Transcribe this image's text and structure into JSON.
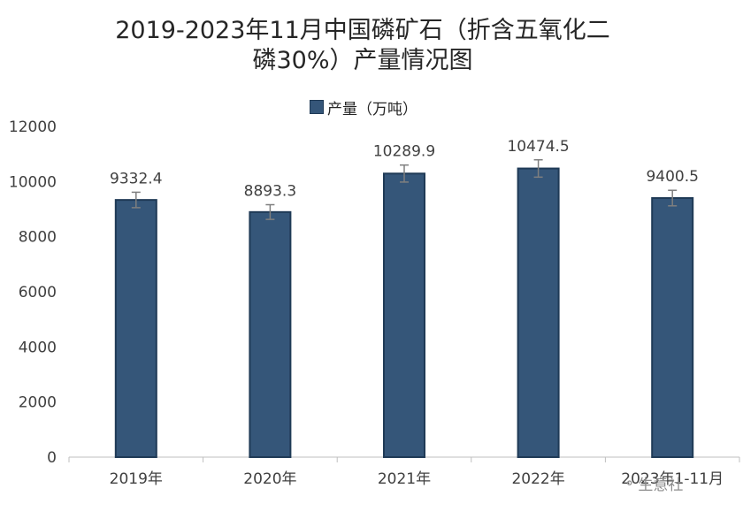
{
  "chart_data": {
    "type": "bar",
    "title_line1": "2019-2023年11月中国磷矿石（折含五氧化二",
    "title_line2": "磷30%）产量情况图",
    "categories": [
      "2019年",
      "2020年",
      "2021年",
      "2022年",
      "2023年1-11月"
    ],
    "series": [
      {
        "name": "产量（万吨）",
        "values": [
          9332.4,
          8893.3,
          10289.9,
          10474.5,
          9400.5
        ]
      }
    ],
    "data_labels": [
      "9332.4",
      "8893.3",
      "10289.9",
      "10474.5",
      "9400.5"
    ],
    "yticks": [
      "0",
      "2000",
      "4000",
      "6000",
      "8000",
      "10000",
      "12000"
    ],
    "ylim": [
      0,
      12000
    ],
    "error_bar": true,
    "grid": false,
    "legend_position": "top-center",
    "colors": {
      "bar": "#355679",
      "bar_edge": "#1f3a56",
      "axis": "#bfbfbf",
      "error_bar": "#7f7f7f"
    }
  },
  "watermark": {
    "text": "生意社",
    "icon": "wechat-icon"
  }
}
